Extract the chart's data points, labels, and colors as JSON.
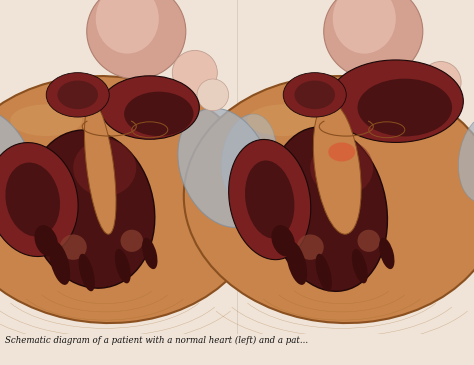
{
  "fig_width": 4.74,
  "fig_height": 3.65,
  "dpi": 100,
  "bg_color": "#f0e4d8",
  "caption": "Schematic diagram of a patient with a normal heart (left) and a pat...",
  "caption_fontsize": 6.2,
  "caption_color": "#111111",
  "myocardium": "#c8844a",
  "myocardium_edge": "#8a5020",
  "myocardium_inner": "#d4975e",
  "chamber_dark": "#4a1212",
  "chamber_med": "#7a2020",
  "chamber_light": "#9a3030",
  "vessel_pink": "#d4a090",
  "vessel_light": "#e8c0b0",
  "silver": "#aab4be",
  "silver_dark": "#8090a0",
  "papillary": "#3a0c0c",
  "wall_tan": "#c8904a",
  "septum_color": "#b87838",
  "left_bg": "#ede0d4",
  "right_bg": "#e8ddd4"
}
